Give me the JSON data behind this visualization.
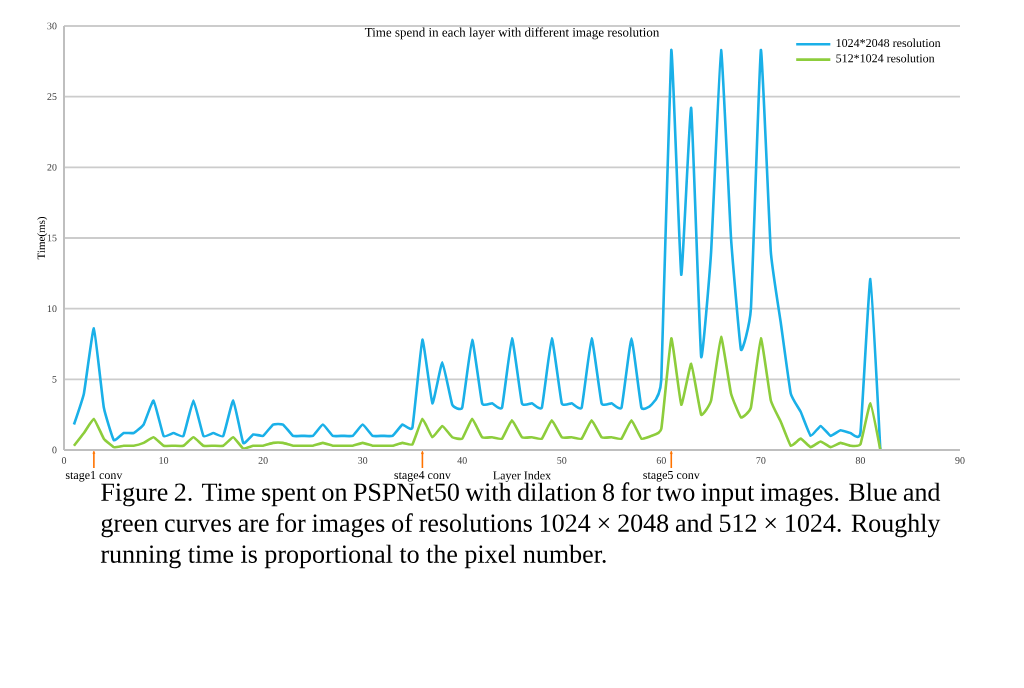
{
  "chart_data": {
    "type": "line",
    "title": "Time spend  in each layer  with different image resolution",
    "xlabel": "Layer Index",
    "ylabel": "Time(ms)",
    "x": [
      1,
      2,
      3,
      4,
      5,
      6,
      7,
      8,
      9,
      10,
      11,
      12,
      13,
      14,
      15,
      16,
      17,
      18,
      19,
      20,
      21,
      22,
      23,
      24,
      25,
      26,
      27,
      28,
      29,
      30,
      31,
      32,
      33,
      34,
      35,
      36,
      37,
      38,
      39,
      40,
      41,
      42,
      43,
      44,
      45,
      46,
      47,
      48,
      49,
      50,
      51,
      52,
      53,
      54,
      55,
      56,
      57,
      58,
      59,
      60,
      61,
      62,
      63,
      64,
      65,
      66,
      67,
      68,
      69,
      70,
      71,
      72,
      73,
      74,
      75,
      76,
      77,
      78,
      79,
      80,
      81,
      82
    ],
    "series": [
      {
        "name": "1024*2048 resolution",
        "color": "#1ab0e8",
        "values": [
          1.8,
          4,
          8.6,
          3,
          0.7,
          1.2,
          1.2,
          1.8,
          3.5,
          1,
          1.2,
          1,
          3.5,
          1,
          1.2,
          1,
          3.5,
          0.5,
          1.1,
          1,
          1.8,
          1.8,
          1,
          1,
          1,
          1.8,
          1,
          1,
          1,
          1.8,
          1,
          1,
          1,
          1.8,
          1.6,
          7.8,
          3.3,
          6.2,
          3.2,
          3,
          7.8,
          3.3,
          3.3,
          3,
          7.9,
          3.3,
          3.3,
          3,
          7.9,
          3.3,
          3.3,
          3,
          7.9,
          3.3,
          3.3,
          3,
          7.9,
          3,
          3.2,
          5,
          28.3,
          12.4,
          24.2,
          6.6,
          14,
          28.3,
          15,
          7.1,
          10,
          28.3,
          14,
          9,
          4,
          2.7,
          1,
          1.7,
          1,
          1.4,
          1.2,
          1.2,
          12.1,
          0
        ]
      },
      {
        "name": "512*1024 resolution",
        "color": "#8dcd3c",
        "values": [
          0.3,
          1.2,
          2.2,
          0.8,
          0.2,
          0.3,
          0.3,
          0.5,
          0.9,
          0.3,
          0.3,
          0.3,
          0.9,
          0.3,
          0.3,
          0.3,
          0.9,
          0.1,
          0.3,
          0.3,
          0.5,
          0.5,
          0.3,
          0.3,
          0.3,
          0.5,
          0.3,
          0.3,
          0.3,
          0.5,
          0.3,
          0.3,
          0.3,
          0.5,
          0.4,
          2.2,
          0.9,
          1.7,
          0.9,
          0.8,
          2.2,
          0.9,
          0.9,
          0.8,
          2.1,
          0.9,
          0.9,
          0.8,
          2.1,
          0.9,
          0.9,
          0.8,
          2.1,
          0.9,
          0.9,
          0.8,
          2.1,
          0.8,
          1,
          1.5,
          7.9,
          3.2,
          6.1,
          2.5,
          3.5,
          8,
          4,
          2.3,
          3,
          7.9,
          3.5,
          2,
          0.3,
          0.8,
          0.2,
          0.6,
          0.2,
          0.5,
          0.3,
          0.4,
          3.3,
          0
        ]
      }
    ],
    "xlim": [
      0,
      90
    ],
    "xticks": [
      0,
      10,
      20,
      30,
      40,
      50,
      60,
      70,
      80,
      90
    ],
    "ylim": [
      0,
      30
    ],
    "yticks": [
      0,
      5,
      10,
      15,
      20,
      25,
      30
    ],
    "grid": "y",
    "legend": "top right",
    "annotations": [
      {
        "text": "stage1 conv",
        "x": 3,
        "y": 0
      },
      {
        "text": "stage4 conv",
        "x": 36,
        "y": 0
      },
      {
        "text": "stage5 conv",
        "x": 61,
        "y": 0
      },
      "Figure 2. Time spent on PSPNet50 with dilation 8 for two input images. Blue and green curves are for images of resolutions 1024 × 2048 and 512 × 1024. Roughly running time is proportional to the pixel number."
    ]
  }
}
